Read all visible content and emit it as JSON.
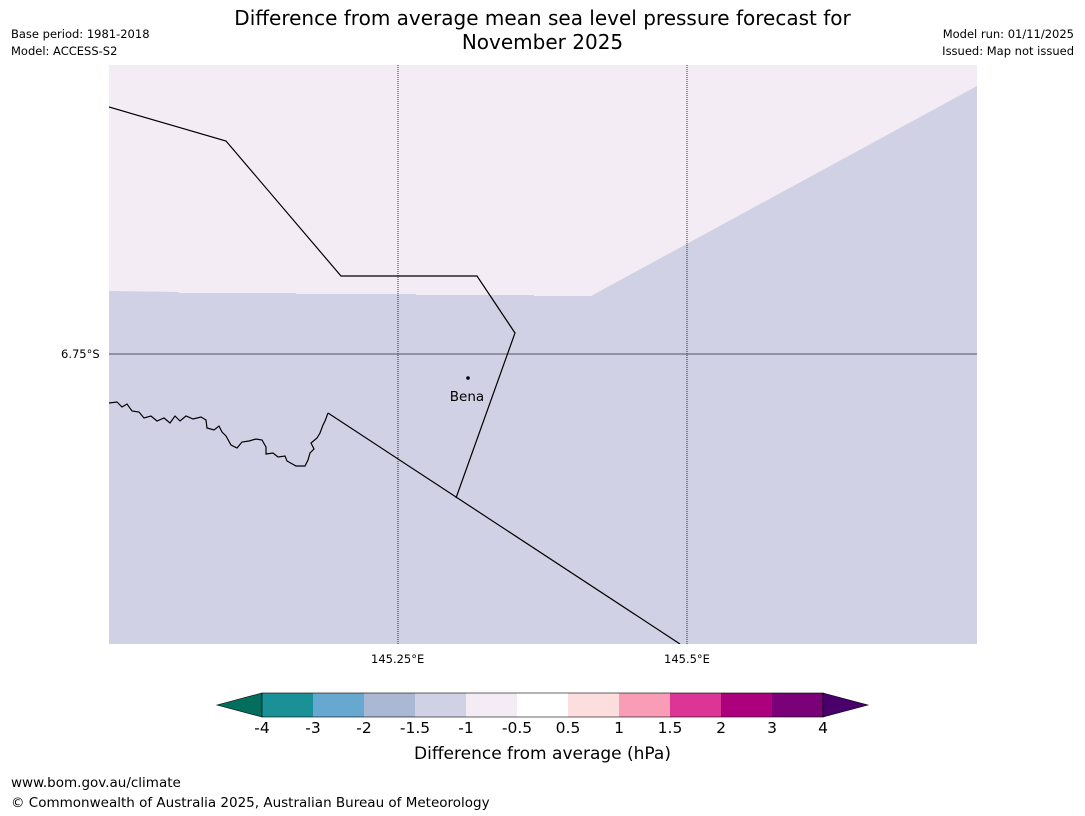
{
  "title_line1": "Difference from average mean sea level pressure forecast for",
  "title_line2": "November 2025",
  "base_period": "Base period: 1981-2018",
  "model": "Model: ACCESS-S2",
  "model_run": "Model run: 01/11/2025",
  "issued": "Issued: Map not issued",
  "latitude_label": "6.75°S",
  "longitude_labels": [
    "145.25°E",
    "145.5°E"
  ],
  "place_name": "Bena",
  "colorbar": {
    "title": "Difference from average (hPa)",
    "ticks": [
      "-4",
      "-3",
      "-2",
      "-1.5",
      "-1",
      "-0.5",
      "0.5",
      "1",
      "1.5",
      "2",
      "3",
      "4"
    ],
    "colors": [
      "#1a9196",
      "#67a8d0",
      "#abb8d4",
      "#d0d1e5",
      "#f4ecf5",
      "#ffffff",
      "#fddede",
      "#f99db6",
      "#dd3596",
      "#ad007d",
      "#7a0177"
    ],
    "low_extend_color": "#036e5d",
    "high_extend_color": "#4a006a"
  },
  "map_fills": {
    "upper_class_color": "#f4ecf5",
    "lower_class_color": "#d0d1e5",
    "upper_class_range": "-1 to -0.5",
    "lower_class_range": "-1.5 to -1"
  },
  "footer_url": "www.bom.gov.au/climate",
  "footer_copyright": "© Commonwealth of Australia 2025, Australian Bureau of Meteorology"
}
